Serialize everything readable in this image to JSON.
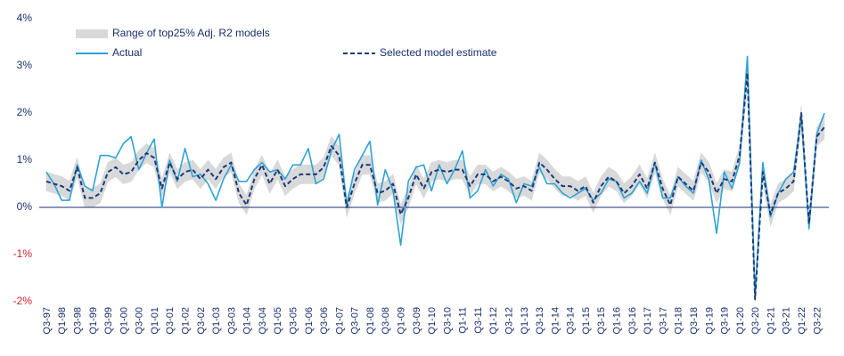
{
  "chart_data": {
    "type": "line",
    "categories": [
      "Q3-97",
      null,
      "Q1-98",
      null,
      "Q3-98",
      null,
      "Q1-99",
      null,
      "Q3-99",
      null,
      "Q1-00",
      null,
      "Q3-00",
      null,
      "Q1-01",
      null,
      "Q3-01",
      null,
      "Q1-02",
      null,
      "Q3-02",
      null,
      "Q1-03",
      null,
      "Q3-03",
      null,
      "Q1-04",
      null,
      "Q3-04",
      null,
      "Q1-05",
      null,
      "Q3-05",
      null,
      "Q1-06",
      null,
      "Q3-06",
      null,
      "Q1-07",
      null,
      "Q3-07",
      null,
      "Q1-08",
      null,
      "Q3-08",
      null,
      "Q1-09",
      null,
      "Q3-09",
      null,
      "Q1-10",
      null,
      "Q3-10",
      null,
      "Q1-11",
      null,
      "Q3-11",
      null,
      "Q1-12",
      null,
      "Q3-12",
      null,
      "Q1-13",
      null,
      "Q3-13",
      null,
      "Q1-14",
      null,
      "Q3-14",
      null,
      "Q1-15",
      null,
      "Q3-15",
      null,
      "Q1-16",
      null,
      "Q3-16",
      null,
      "Q1-17",
      null,
      "Q3-17",
      null,
      "Q1-18",
      null,
      "Q3-18",
      null,
      "Q1-19",
      null,
      "Q3-19",
      null,
      "Q1-20",
      null,
      "Q3-20",
      null,
      "Q1-21",
      null,
      "Q3-21",
      null,
      "Q1-22",
      null,
      "Q3-22",
      null
    ],
    "series": [
      {
        "name": "Range of top25% Adj. R2 models",
        "color": "#d9d9d9",
        "low": [
          0.35,
          0.3,
          0.25,
          0.15,
          0.65,
          0.0,
          0.0,
          0.1,
          0.55,
          0.65,
          0.5,
          0.55,
          0.8,
          0.95,
          0.85,
          0.2,
          0.75,
          0.4,
          0.55,
          0.6,
          0.4,
          0.6,
          0.4,
          0.65,
          0.75,
          0.1,
          -0.15,
          0.4,
          0.7,
          0.3,
          0.6,
          0.25,
          0.4,
          0.5,
          0.5,
          0.5,
          0.65,
          1.1,
          0.9,
          -0.2,
          0.3,
          0.7,
          0.7,
          0.1,
          0.15,
          0.3,
          -0.35,
          0.0,
          0.5,
          0.2,
          0.55,
          0.6,
          0.55,
          0.6,
          0.6,
          0.25,
          0.5,
          0.5,
          0.35,
          0.45,
          0.35,
          0.2,
          0.25,
          0.15,
          0.75,
          0.6,
          0.4,
          0.25,
          0.25,
          0.15,
          0.25,
          -0.1,
          0.25,
          0.45,
          0.35,
          0.1,
          0.25,
          0.5,
          0.2,
          0.75,
          0.2,
          -0.15,
          0.45,
          0.3,
          0.15,
          0.75,
          0.55,
          0.1,
          0.4,
          0.35,
          0.9,
          2.55,
          -1.95,
          0.55,
          -0.4,
          0.1,
          0.2,
          0.35,
          1.7,
          -0.5,
          1.3,
          1.45
        ],
        "high": [
          0.75,
          0.7,
          0.65,
          0.55,
          1.05,
          0.4,
          0.4,
          0.5,
          0.95,
          1.05,
          0.9,
          0.95,
          1.2,
          1.35,
          1.25,
          0.6,
          1.15,
          0.8,
          0.95,
          1.0,
          0.8,
          1.0,
          0.8,
          1.05,
          1.15,
          0.5,
          0.25,
          0.8,
          1.1,
          0.7,
          1.0,
          0.65,
          0.8,
          0.9,
          0.9,
          0.9,
          1.05,
          1.5,
          1.3,
          0.2,
          0.7,
          1.1,
          1.1,
          0.5,
          0.55,
          0.7,
          0.05,
          0.4,
          0.9,
          0.6,
          0.95,
          1.0,
          0.95,
          1.0,
          1.0,
          0.65,
          0.9,
          0.9,
          0.75,
          0.85,
          0.75,
          0.6,
          0.65,
          0.55,
          1.15,
          1.0,
          0.8,
          0.65,
          0.65,
          0.55,
          0.65,
          0.3,
          0.65,
          0.85,
          0.75,
          0.5,
          0.65,
          0.9,
          0.6,
          1.15,
          0.6,
          0.25,
          0.85,
          0.7,
          0.55,
          1.15,
          0.95,
          0.5,
          0.8,
          0.75,
          1.3,
          3.05,
          -1.75,
          0.95,
          0.05,
          0.5,
          0.6,
          0.75,
          2.15,
          -0.2,
          1.7,
          1.95
        ]
      },
      {
        "name": "Actual",
        "color": "#2ea3d5",
        "values": [
          0.75,
          0.5,
          0.15,
          0.15,
          0.9,
          0.45,
          0.35,
          1.1,
          1.1,
          1.05,
          1.35,
          1.5,
          0.8,
          1.15,
          1.45,
          0.0,
          1.0,
          0.55,
          1.25,
          0.65,
          0.7,
          0.5,
          0.15,
          0.6,
          0.9,
          0.55,
          0.55,
          0.8,
          0.95,
          0.75,
          0.8,
          0.6,
          0.9,
          0.9,
          1.25,
          0.5,
          0.6,
          1.2,
          1.55,
          0.05,
          0.8,
          1.1,
          1.4,
          0.05,
          0.8,
          0.35,
          -0.8,
          0.55,
          0.85,
          0.9,
          0.35,
          0.9,
          0.5,
          0.8,
          1.2,
          0.2,
          0.35,
          0.8,
          0.45,
          0.7,
          0.6,
          0.1,
          0.5,
          0.45,
          0.85,
          0.5,
          0.5,
          0.3,
          0.2,
          0.3,
          0.4,
          0.15,
          0.3,
          0.6,
          0.55,
          0.2,
          0.3,
          0.55,
          0.3,
          0.95,
          0.2,
          0.2,
          0.65,
          0.45,
          0.3,
          1.0,
          0.6,
          -0.55,
          0.75,
          0.4,
          0.95,
          3.2,
          -1.9,
          0.95,
          -0.2,
          0.3,
          0.6,
          0.75,
          1.95,
          -0.45,
          1.55,
          2.0
        ]
      },
      {
        "name": "Selected model estimate",
        "color": "#1b3a7a",
        "dashed": true,
        "values": [
          0.55,
          0.5,
          0.45,
          0.35,
          0.85,
          0.2,
          0.2,
          0.3,
          0.75,
          0.85,
          0.7,
          0.75,
          1.0,
          1.15,
          1.05,
          0.4,
          0.95,
          0.6,
          0.75,
          0.8,
          0.6,
          0.8,
          0.6,
          0.85,
          0.95,
          0.3,
          0.05,
          0.6,
          0.9,
          0.5,
          0.8,
          0.45,
          0.6,
          0.7,
          0.7,
          0.7,
          0.85,
          1.3,
          1.1,
          0.0,
          0.5,
          0.9,
          0.9,
          0.3,
          0.35,
          0.5,
          -0.15,
          0.2,
          0.7,
          0.4,
          0.75,
          0.8,
          0.75,
          0.8,
          0.8,
          0.45,
          0.7,
          0.7,
          0.55,
          0.65,
          0.55,
          0.4,
          0.45,
          0.35,
          0.95,
          0.8,
          0.6,
          0.45,
          0.45,
          0.35,
          0.45,
          0.1,
          0.45,
          0.65,
          0.55,
          0.3,
          0.45,
          0.7,
          0.4,
          0.95,
          0.4,
          0.05,
          0.65,
          0.5,
          0.35,
          0.95,
          0.75,
          0.3,
          0.6,
          0.55,
          1.1,
          2.85,
          -1.95,
          0.75,
          -0.15,
          0.3,
          0.4,
          0.55,
          2.0,
          -0.35,
          1.5,
          1.7
        ]
      }
    ],
    "ylim": [
      -2,
      4
    ],
    "yticks": [
      {
        "value": -2,
        "label": "-2%"
      },
      {
        "value": -1,
        "label": "-1%"
      },
      {
        "value": 0,
        "label": "0%"
      },
      {
        "value": 1,
        "label": "1%"
      },
      {
        "value": 2,
        "label": "2%"
      },
      {
        "value": 3,
        "label": "3%"
      },
      {
        "value": 4,
        "label": "4%"
      }
    ],
    "label_color": "#1a2f6e",
    "negative_label_color": "#d2232a",
    "zero_line_color": "#1a2f6e",
    "grid": false
  }
}
